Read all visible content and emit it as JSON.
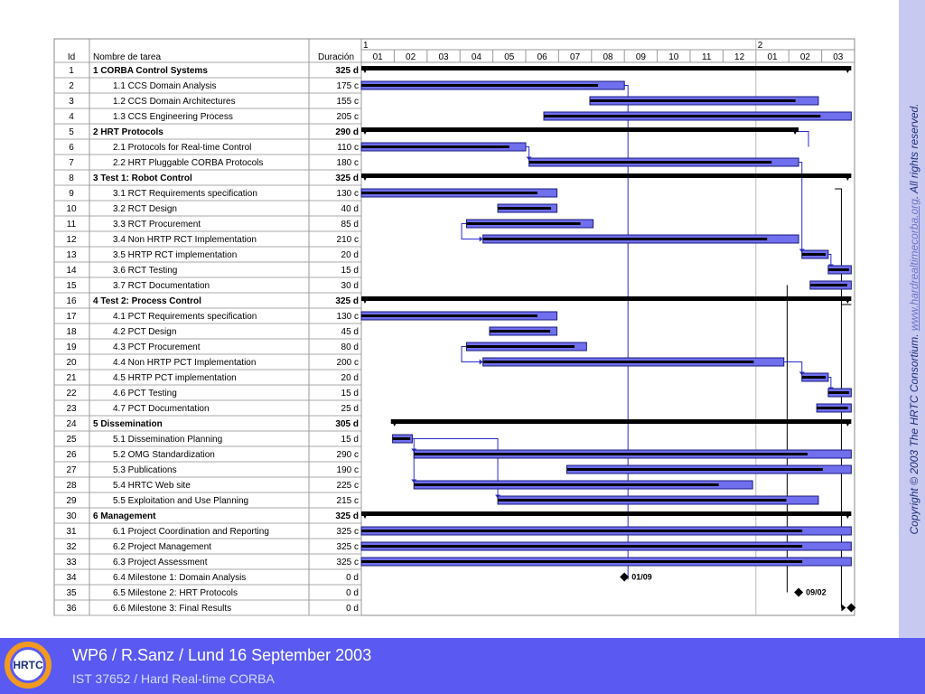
{
  "header": {
    "id": "Id",
    "name": "Nombre de tarea",
    "duration": "Duración",
    "year1": "1",
    "year2": "2",
    "months": [
      "01",
      "02",
      "03",
      "04",
      "05",
      "06",
      "07",
      "08",
      "09",
      "10",
      "11",
      "12",
      "01",
      "02",
      "03"
    ]
  },
  "tasks": [
    {
      "id": "1",
      "name": "1 CORBA Control Systems",
      "dur": "325 d",
      "summary": true,
      "indent": 0,
      "start": 0,
      "end": 14.9
    },
    {
      "id": "2",
      "name": "1.1 CCS Domain Analysis",
      "dur": "175 c",
      "summary": false,
      "indent": 1,
      "start": 0,
      "end": 8.0
    },
    {
      "id": "3",
      "name": "1.2 CCS Domain Architectures",
      "dur": "155 c",
      "summary": false,
      "indent": 1,
      "start": 6.95,
      "end": 13.9
    },
    {
      "id": "4",
      "name": "1.3 CCS Engineering Process",
      "dur": "205 c",
      "summary": false,
      "indent": 1,
      "start": 5.55,
      "end": 14.9
    },
    {
      "id": "5",
      "name": "2 HRT Protocols",
      "dur": "290 d",
      "summary": true,
      "indent": 0,
      "start": 0,
      "end": 13.3
    },
    {
      "id": "6",
      "name": "2.1 Protocols for Real-time Control",
      "dur": "110 c",
      "summary": false,
      "indent": 1,
      "start": 0,
      "end": 5.0
    },
    {
      "id": "7",
      "name": "2.2 HRT Pluggable CORBA Protocols",
      "dur": "180 c",
      "summary": false,
      "indent": 1,
      "start": 5.1,
      "end": 13.3
    },
    {
      "id": "8",
      "name": "3 Test 1: Robot Control",
      "dur": "325 d",
      "summary": true,
      "indent": 0,
      "start": 0,
      "end": 14.9
    },
    {
      "id": "9",
      "name": "3.1 RCT Requirements specification",
      "dur": "130 c",
      "summary": false,
      "indent": 1,
      "start": 0,
      "end": 5.95
    },
    {
      "id": "10",
      "name": "3.2 RCT Design",
      "dur": "40 d",
      "summary": false,
      "indent": 1,
      "start": 4.15,
      "end": 5.95
    },
    {
      "id": "11",
      "name": "3.3 RCT Procurement",
      "dur": "85 d",
      "summary": false,
      "indent": 1,
      "start": 3.2,
      "end": 7.05
    },
    {
      "id": "12",
      "name": "3.4 Non HRTP RCT Implementation",
      "dur": "210 c",
      "summary": false,
      "indent": 1,
      "start": 3.7,
      "end": 13.3
    },
    {
      "id": "13",
      "name": "3.5 HRTP RCT implementation",
      "dur": "20 d",
      "summary": false,
      "indent": 1,
      "start": 13.4,
      "end": 14.2
    },
    {
      "id": "14",
      "name": "3.6 RCT Testing",
      "dur": "15 d",
      "summary": false,
      "indent": 1,
      "start": 14.2,
      "end": 14.9
    },
    {
      "id": "15",
      "name": "3.7 RCT Documentation",
      "dur": "30 d",
      "summary": false,
      "indent": 1,
      "start": 13.65,
      "end": 14.9
    },
    {
      "id": "16",
      "name": "4 Test 2: Process Control",
      "dur": "325 d",
      "summary": true,
      "indent": 0,
      "start": 0,
      "end": 14.9
    },
    {
      "id": "17",
      "name": "4.1 PCT Requirements specification",
      "dur": "130 c",
      "summary": false,
      "indent": 1,
      "start": 0,
      "end": 5.95
    },
    {
      "id": "18",
      "name": "4.2 PCT Design",
      "dur": "45 d",
      "summary": false,
      "indent": 1,
      "start": 3.9,
      "end": 5.95
    },
    {
      "id": "19",
      "name": "4.3 PCT Procurement",
      "dur": "80 d",
      "summary": false,
      "indent": 1,
      "start": 3.2,
      "end": 6.85
    },
    {
      "id": "20",
      "name": "4.4 Non HRTP PCT Implementation",
      "dur": "200 c",
      "summary": false,
      "indent": 1,
      "start": 3.7,
      "end": 12.85
    },
    {
      "id": "21",
      "name": "4.5 HRTP PCT implementation",
      "dur": "20 d",
      "summary": false,
      "indent": 1,
      "start": 13.4,
      "end": 14.2
    },
    {
      "id": "22",
      "name": "4.6 PCT Testing",
      "dur": "15 d",
      "summary": false,
      "indent": 1,
      "start": 14.2,
      "end": 14.9
    },
    {
      "id": "23",
      "name": "4.7 PCT Documentation",
      "dur": "25 d",
      "summary": false,
      "indent": 1,
      "start": 13.85,
      "end": 14.9
    },
    {
      "id": "24",
      "name": "5 Dissemination",
      "dur": "305 d",
      "summary": true,
      "indent": 0,
      "start": 0.9,
      "end": 14.9
    },
    {
      "id": "25",
      "name": "5.1 Dissemination Planning",
      "dur": "15 d",
      "summary": false,
      "indent": 1,
      "start": 0.95,
      "end": 1.55
    },
    {
      "id": "26",
      "name": "5.2 OMG Standardization",
      "dur": "290 c",
      "summary": false,
      "indent": 1,
      "start": 1.6,
      "end": 14.9
    },
    {
      "id": "27",
      "name": "5.3 Publications",
      "dur": "190 c",
      "summary": false,
      "indent": 1,
      "start": 6.25,
      "end": 14.9
    },
    {
      "id": "28",
      "name": "5.4 HRTC Web site",
      "dur": "225 c",
      "summary": false,
      "indent": 1,
      "start": 1.6,
      "end": 11.9
    },
    {
      "id": "29",
      "name": "5.5 Exploitation and Use Planning",
      "dur": "215 c",
      "summary": false,
      "indent": 1,
      "start": 4.15,
      "end": 13.9
    },
    {
      "id": "30",
      "name": "6 Management",
      "dur": "325 d",
      "summary": true,
      "indent": 0,
      "start": 0,
      "end": 14.9
    },
    {
      "id": "31",
      "name": "6.1 Project Coordination and Reporting",
      "dur": "325 c",
      "summary": false,
      "indent": 1,
      "start": 0,
      "end": 14.9
    },
    {
      "id": "32",
      "name": "6.2 Project Management",
      "dur": "325 c",
      "summary": false,
      "indent": 1,
      "start": 0,
      "end": 14.9
    },
    {
      "id": "33",
      "name": "6.3 Project Assessment",
      "dur": "325 c",
      "summary": false,
      "indent": 1,
      "start": 0,
      "end": 14.9
    },
    {
      "id": "34",
      "name": "6.4 Milestone 1: Domain Analysis",
      "dur": "0 d",
      "summary": false,
      "indent": 1,
      "milestone": 8.0,
      "label": "01/09"
    },
    {
      "id": "35",
      "name": "6.5 Milestone 2: HRT Protocols",
      "dur": "0 d",
      "summary": false,
      "indent": 1,
      "milestone": 13.3,
      "label": "09/02"
    },
    {
      "id": "36",
      "name": "6.6 Milestone 3: Final Results",
      "dur": "0 d",
      "summary": false,
      "indent": 1,
      "milestone": 14.9,
      "label": ""
    }
  ],
  "copyright": {
    "text": "Copyright © 2003 The HRTC Consortium. ",
    "link": "www.hardrealtimecorba.org",
    "suffix": ". All rights reserved."
  },
  "footer": {
    "title": "WP6 / R.Sanz / Lund 16 September 2003",
    "subtitle": "IST 37652 / Hard Real-time CORBA",
    "logo_text": "HRTC"
  },
  "colors": {
    "bar": "#7070ee",
    "bar_border": "#1a1a80",
    "progress": "#000000",
    "summary": "#000000",
    "link": "#2a2ad0",
    "footer": "#5a5af2",
    "sidebar": "#c7c9f0",
    "logo": "#f29a1f"
  }
}
